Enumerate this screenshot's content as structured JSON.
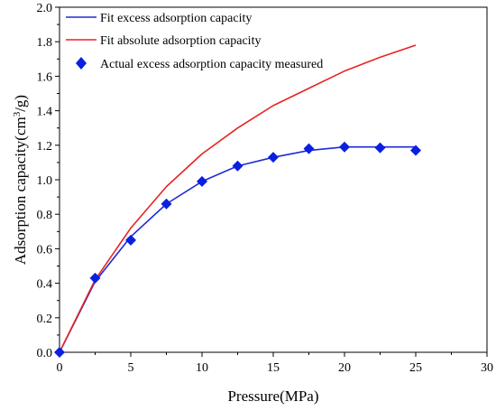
{
  "chart_data": {
    "type": "line",
    "xlabel": "Pressure(MPa)",
    "ylabel_main": "Adsorption capacity(cm",
    "ylabel_sup": "3",
    "ylabel_end": "/g)",
    "xlim": [
      0,
      30
    ],
    "ylim": [
      0,
      2.0
    ],
    "xticks": [
      "0",
      "5",
      "10",
      "15",
      "20",
      "25",
      "30"
    ],
    "yticks": [
      "0.0",
      "0.2",
      "0.4",
      "0.6",
      "0.8",
      "1.0",
      "1.2",
      "1.4",
      "1.6",
      "1.8",
      "2.0"
    ],
    "grid": false,
    "legend_position": "top-left",
    "series": [
      {
        "name": "Fit excess adsorption capacity",
        "kind": "line",
        "color": "#1f2bd6",
        "x": [
          0,
          2.5,
          5,
          7.5,
          10,
          12.5,
          15,
          17.5,
          20,
          22.5,
          25
        ],
        "y": [
          0,
          0.41,
          0.67,
          0.86,
          0.99,
          1.08,
          1.13,
          1.17,
          1.19,
          1.19,
          1.19
        ]
      },
      {
        "name": "Fit absolute adsorption capacity",
        "kind": "line",
        "color": "#e8231f",
        "x": [
          0,
          2.5,
          5,
          7.5,
          10,
          12.5,
          15,
          17.5,
          20,
          22.5,
          25
        ],
        "y": [
          0,
          0.42,
          0.72,
          0.96,
          1.15,
          1.3,
          1.43,
          1.53,
          1.63,
          1.71,
          1.78
        ]
      },
      {
        "name": "Actual excess adsorption capacity measured",
        "kind": "scatter",
        "marker": "diamond",
        "color": "#0a1fe0",
        "x": [
          0,
          2.5,
          5,
          7.5,
          10,
          12.5,
          15,
          17.5,
          20,
          22.5,
          25
        ],
        "y": [
          0,
          0.43,
          0.65,
          0.86,
          0.99,
          1.08,
          1.13,
          1.18,
          1.19,
          1.185,
          1.17
        ]
      }
    ]
  }
}
